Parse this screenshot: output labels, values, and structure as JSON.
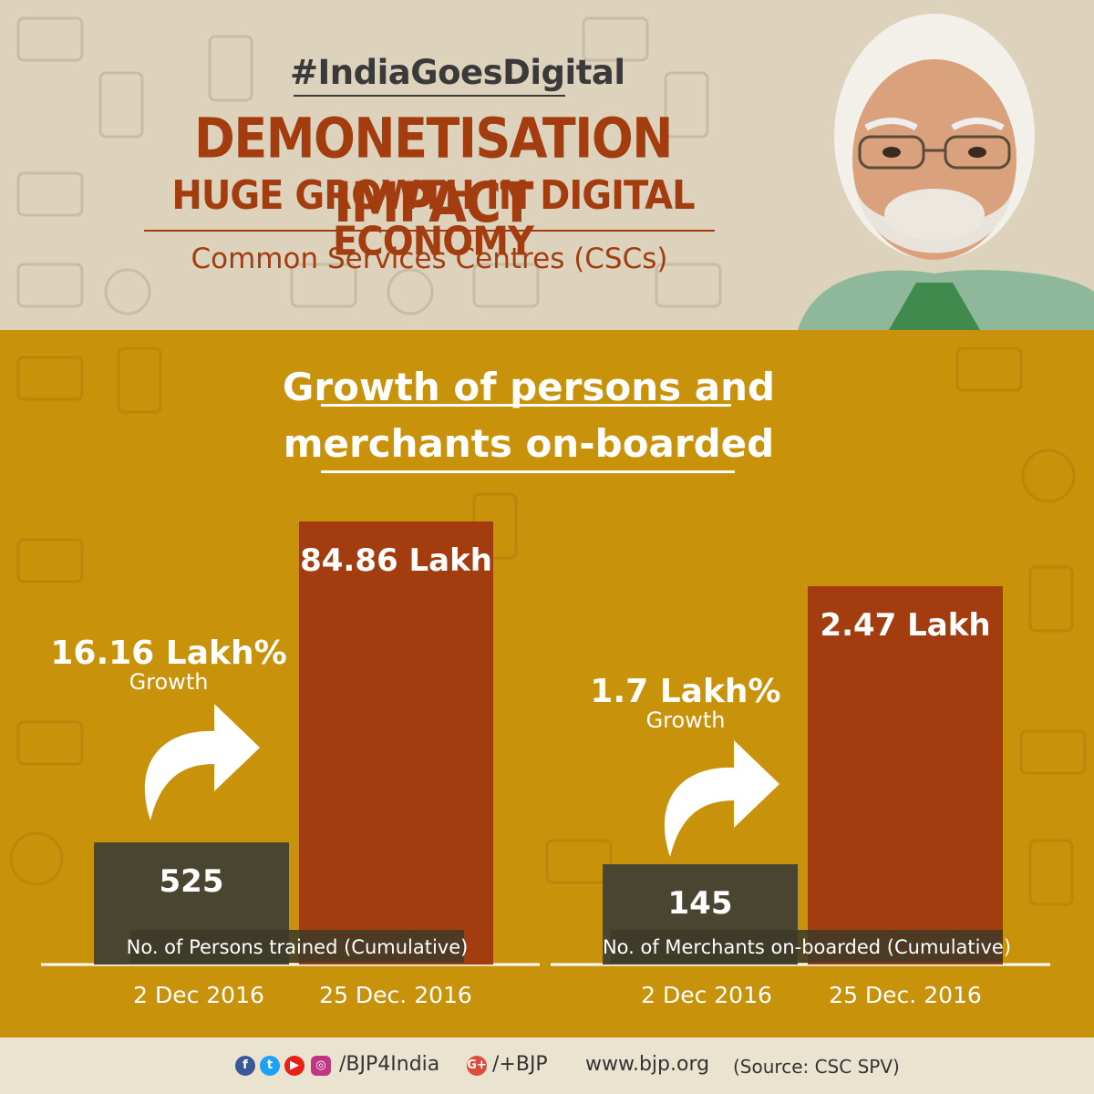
{
  "header": {
    "hashtag": "#IndiaGoesDigital",
    "headline": "DEMONETISATION IMPACT",
    "subheadline": "HUGE GROWTH IN DIGITAL ECONOMY",
    "program": "Common Services Centres (CSCs)"
  },
  "section_title": [
    "Growth of persons and",
    "merchants on-boarded"
  ],
  "chart_data": [
    {
      "type": "bar",
      "title": "No. of Persons trained (Cumulative)",
      "categories": [
        "2 Dec 2016",
        "25 Dec. 2016"
      ],
      "values": [
        525,
        8486000
      ],
      "value_labels": [
        "525",
        "84.86 Lakh"
      ],
      "growth_value": "16.16 Lakh%",
      "growth_label": "Growth"
    },
    {
      "type": "bar",
      "title": "No. of Merchants on-boarded (Cumulative)",
      "categories": [
        "2 Dec 2016",
        "25 Dec. 2016"
      ],
      "values": [
        145,
        247000
      ],
      "value_labels": [
        "145",
        "2.47 Lakh"
      ],
      "growth_value": "1.7 Lakh%",
      "growth_label": "Growth"
    }
  ],
  "colors": {
    "accent": "#a33d10",
    "before_bar": "#4a4530",
    "after_bar": "#a33d10",
    "background": "#c8920a"
  },
  "footer": {
    "social_handle": "/BJP4India",
    "gplus_handle": "/+BJP",
    "website": "www.bjp.org",
    "source": "(Source: CSC SPV)"
  }
}
